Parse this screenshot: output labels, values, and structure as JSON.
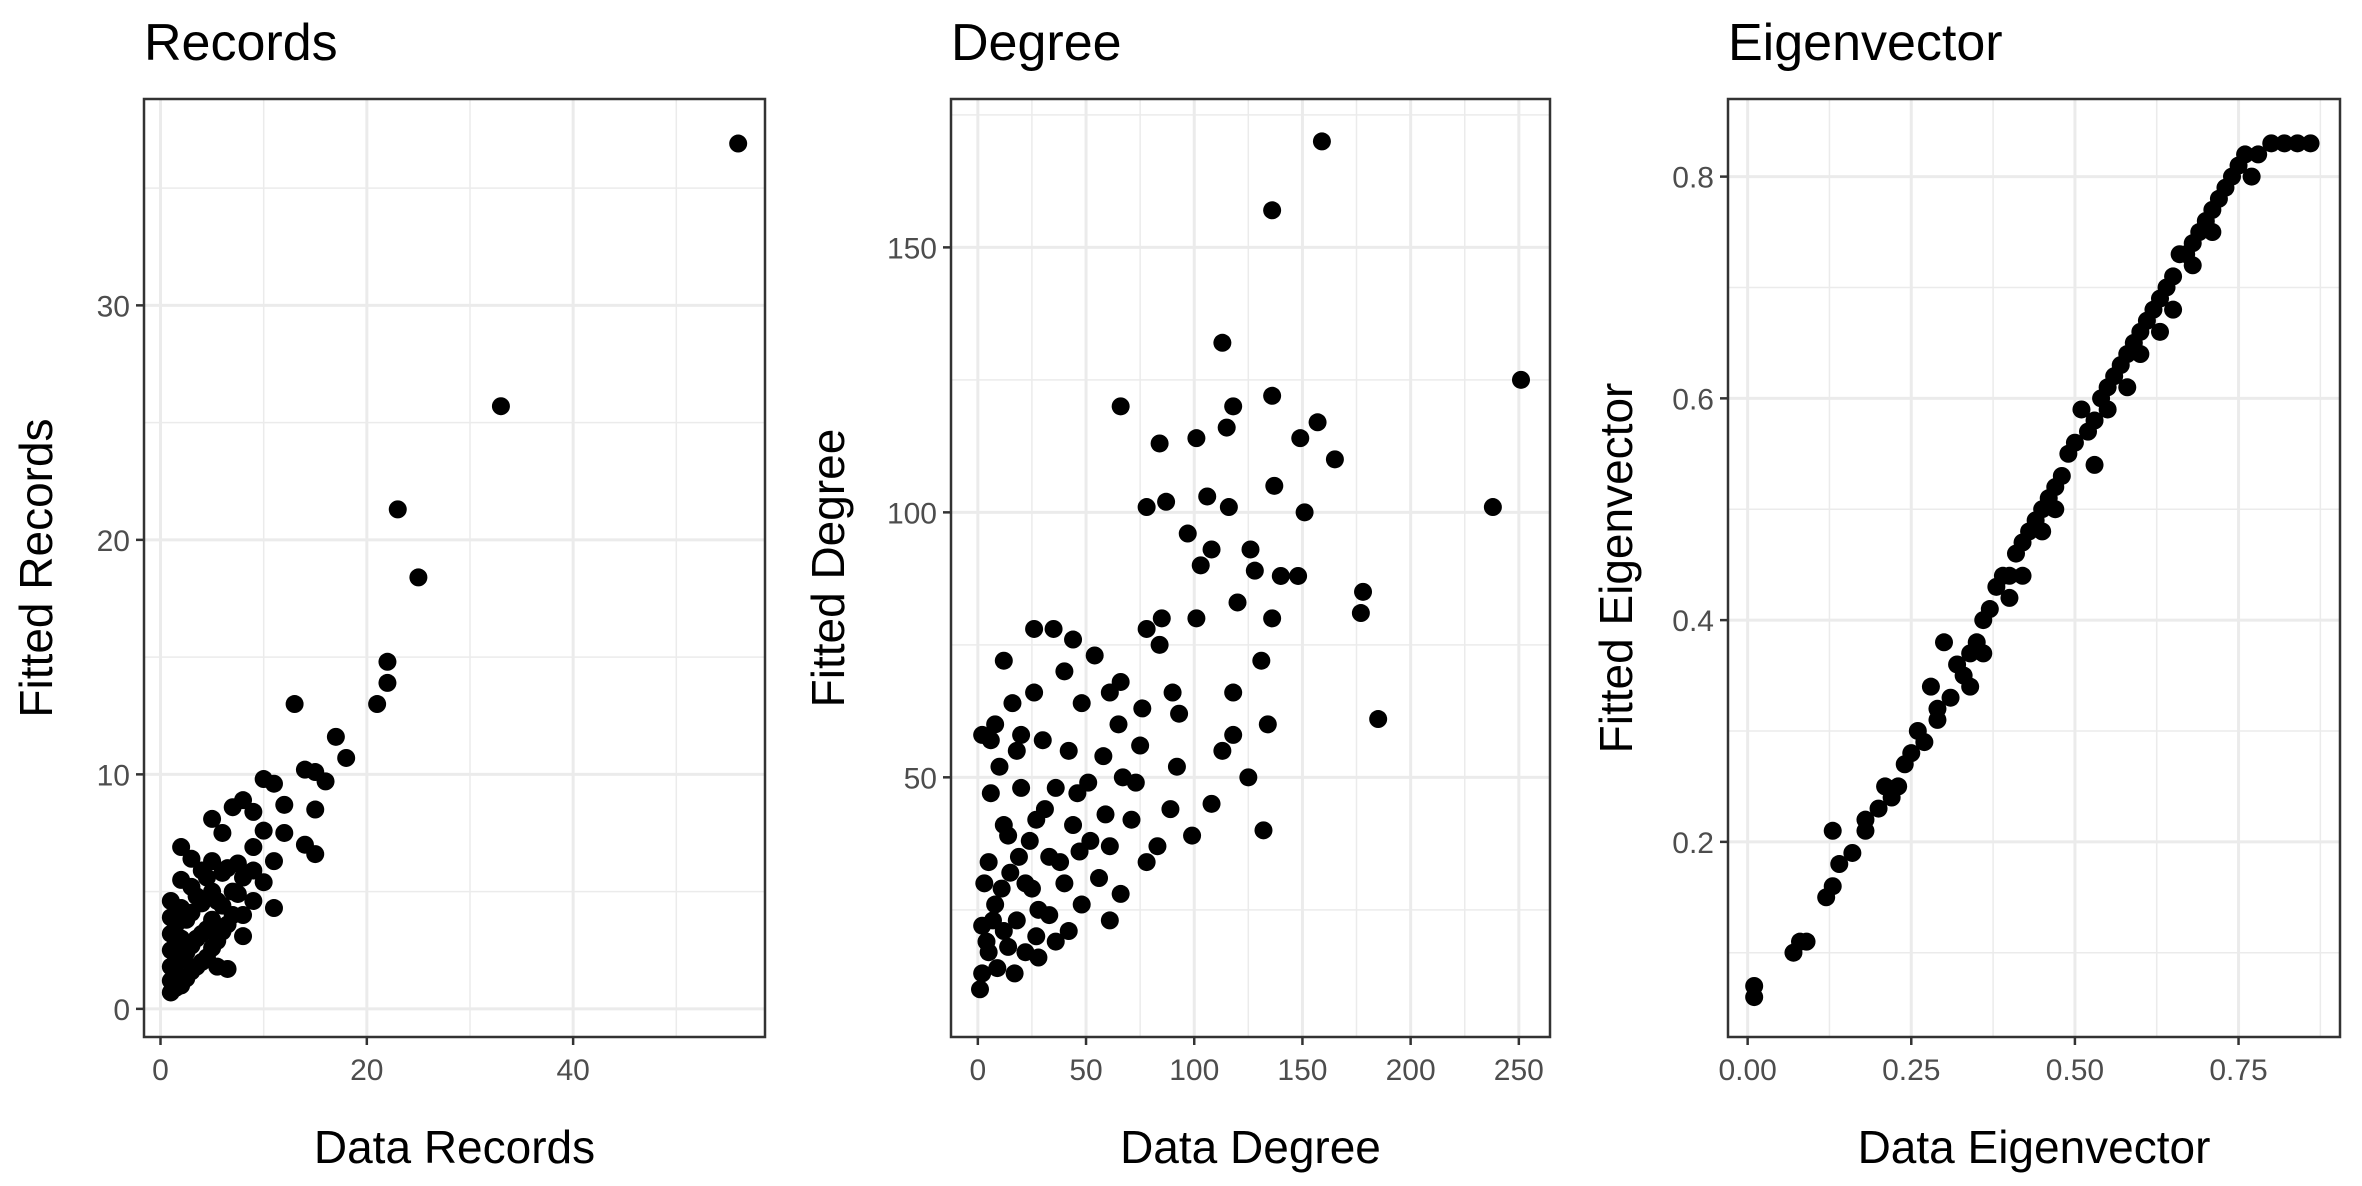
{
  "chart_data": [
    {
      "type": "scatter",
      "title": "Records",
      "xlabel": "Data Records",
      "ylabel": "Fitted Records",
      "xlim": [
        -1.6,
        58.6
      ],
      "ylim": [
        -1.2,
        38.8
      ],
      "xticks": [
        0,
        20,
        40
      ],
      "yticks": [
        0,
        10,
        20,
        30
      ],
      "xminor": [
        10,
        30,
        50
      ],
      "yminor": [
        5,
        15,
        25,
        35
      ],
      "grid": true,
      "point_color": "#000000",
      "points": [
        [
          56,
          36.9
        ],
        [
          33,
          25.7
        ],
        [
          23,
          21.3
        ],
        [
          25,
          18.4
        ],
        [
          22,
          14.8
        ],
        [
          22,
          13.9
        ],
        [
          21,
          13.0
        ],
        [
          13,
          13.0
        ],
        [
          17,
          11.6
        ],
        [
          18,
          10.7
        ],
        [
          14,
          10.2
        ],
        [
          15,
          10.1
        ],
        [
          16,
          9.7
        ],
        [
          10,
          9.8
        ],
        [
          11,
          9.6
        ],
        [
          12,
          8.7
        ],
        [
          14,
          7.0
        ],
        [
          15,
          6.6
        ],
        [
          15,
          8.5
        ],
        [
          8,
          8.9
        ],
        [
          7,
          8.6
        ],
        [
          9,
          8.4
        ],
        [
          5,
          8.1
        ],
        [
          6,
          7.5
        ],
        [
          10,
          7.6
        ],
        [
          12,
          7.5
        ],
        [
          9,
          6.9
        ],
        [
          11,
          6.3
        ],
        [
          10,
          5.4
        ],
        [
          11,
          4.3
        ],
        [
          9,
          4.6
        ],
        [
          8,
          4.0
        ],
        [
          8,
          3.1
        ],
        [
          7,
          5.0
        ],
        [
          6,
          4.4
        ],
        [
          6,
          5.8
        ],
        [
          5,
          6.3
        ],
        [
          5,
          5.0
        ],
        [
          5,
          3.8
        ],
        [
          4,
          4.5
        ],
        [
          4,
          5.9
        ],
        [
          4,
          3.2
        ],
        [
          3,
          2.7
        ],
        [
          3,
          4.1
        ],
        [
          3,
          5.2
        ],
        [
          3,
          6.4
        ],
        [
          2,
          6.9
        ],
        [
          2,
          5.5
        ],
        [
          2,
          4.3
        ],
        [
          2,
          3.0
        ],
        [
          2,
          2.1
        ],
        [
          1,
          1.2
        ],
        [
          1,
          1.8
        ],
        [
          1,
          2.5
        ],
        [
          1,
          3.2
        ],
        [
          1,
          3.9
        ],
        [
          1,
          4.6
        ],
        [
          1.5,
          0.9
        ],
        [
          1.5,
          1.5
        ],
        [
          2.5,
          1.3
        ],
        [
          3.5,
          1.8
        ],
        [
          4.5,
          2.2
        ],
        [
          5.5,
          2.9
        ],
        [
          6.5,
          3.6
        ],
        [
          7.5,
          4.9
        ],
        [
          6.5,
          1.7
        ],
        [
          5.5,
          1.8
        ],
        [
          4.5,
          3.4
        ],
        [
          3.5,
          3.0
        ],
        [
          2.5,
          2.4
        ],
        [
          1.5,
          2.8
        ],
        [
          1.5,
          3.6
        ],
        [
          2.5,
          3.8
        ],
        [
          3.5,
          4.8
        ],
        [
          4.5,
          5.6
        ],
        [
          5.5,
          4.6
        ],
        [
          6.5,
          6.0
        ],
        [
          7.5,
          6.2
        ],
        [
          1,
          0.7
        ],
        [
          2,
          1.0
        ],
        [
          3,
          1.6
        ],
        [
          4,
          2.0
        ],
        [
          5,
          2.6
        ],
        [
          6,
          3.3
        ],
        [
          7,
          4.0
        ],
        [
          8,
          5.6
        ],
        [
          9,
          5.9
        ]
      ]
    },
    {
      "type": "scatter",
      "title": "Degree",
      "xlabel": "Data Degree",
      "ylabel": "Fitted Degree",
      "xlim": [
        -12.4,
        264.4
      ],
      "ylim": [
        1,
        178
      ],
      "xticks": [
        0,
        50,
        100,
        150,
        200,
        250
      ],
      "yticks": [
        50,
        100,
        150
      ],
      "xminor": [
        25,
        75,
        125,
        175,
        225
      ],
      "yminor": [
        25,
        75,
        125,
        175
      ],
      "grid": true,
      "point_color": "#000000",
      "points": [
        [
          159,
          170
        ],
        [
          136,
          157
        ],
        [
          113,
          132
        ],
        [
          251,
          125
        ],
        [
          136,
          122
        ],
        [
          118,
          120
        ],
        [
          66,
          120
        ],
        [
          157,
          117
        ],
        [
          115,
          116
        ],
        [
          149,
          114
        ],
        [
          101,
          114
        ],
        [
          165,
          110
        ],
        [
          84,
          113
        ],
        [
          238,
          101
        ],
        [
          116,
          101
        ],
        [
          137,
          105
        ],
        [
          106,
          103
        ],
        [
          87,
          102
        ],
        [
          78,
          101
        ],
        [
          151,
          100
        ],
        [
          97,
          96
        ],
        [
          108,
          93
        ],
        [
          126,
          93
        ],
        [
          128,
          89
        ],
        [
          103,
          90
        ],
        [
          140,
          88
        ],
        [
          148,
          88
        ],
        [
          178,
          85
        ],
        [
          120,
          83
        ],
        [
          177,
          81
        ],
        [
          101,
          80
        ],
        [
          136,
          80
        ],
        [
          85,
          80
        ],
        [
          78,
          78
        ],
        [
          35,
          78
        ],
        [
          26,
          78
        ],
        [
          84,
          75
        ],
        [
          44,
          76
        ],
        [
          54,
          73
        ],
        [
          12,
          72
        ],
        [
          40,
          70
        ],
        [
          131,
          72
        ],
        [
          66,
          68
        ],
        [
          118,
          66
        ],
        [
          90,
          66
        ],
        [
          61,
          66
        ],
        [
          26,
          66
        ],
        [
          16,
          64
        ],
        [
          185,
          61
        ],
        [
          134,
          60
        ],
        [
          118,
          58
        ],
        [
          93,
          62
        ],
        [
          76,
          63
        ],
        [
          48,
          64
        ],
        [
          2,
          58
        ],
        [
          8,
          60
        ],
        [
          6,
          57
        ],
        [
          18,
          55
        ],
        [
          30,
          57
        ],
        [
          42,
          55
        ],
        [
          58,
          54
        ],
        [
          75,
          56
        ],
        [
          92,
          52
        ],
        [
          113,
          55
        ],
        [
          125,
          50
        ],
        [
          67,
          50
        ],
        [
          51,
          49
        ],
        [
          36,
          48
        ],
        [
          20,
          48
        ],
        [
          6,
          47
        ],
        [
          108,
          45
        ],
        [
          89,
          44
        ],
        [
          71,
          42
        ],
        [
          59,
          43
        ],
        [
          44,
          41
        ],
        [
          27,
          42
        ],
        [
          12,
          41
        ],
        [
          132,
          40
        ],
        [
          99,
          39
        ],
        [
          83,
          37
        ],
        [
          61,
          37
        ],
        [
          47,
          36
        ],
        [
          33,
          35
        ],
        [
          19,
          35
        ],
        [
          5,
          34
        ],
        [
          78,
          34
        ],
        [
          56,
          31
        ],
        [
          40,
          30
        ],
        [
          25,
          29
        ],
        [
          11,
          29
        ],
        [
          3,
          30
        ],
        [
          66,
          28
        ],
        [
          48,
          26
        ],
        [
          33,
          24
        ],
        [
          18,
          23
        ],
        [
          7,
          23
        ],
        [
          2,
          22
        ],
        [
          61,
          23
        ],
        [
          42,
          21
        ],
        [
          27,
          20
        ],
        [
          14,
          18
        ],
        [
          5,
          17
        ],
        [
          36,
          19
        ],
        [
          22,
          17
        ],
        [
          9,
          14
        ],
        [
          2,
          13
        ],
        [
          17,
          13
        ],
        [
          28,
          25
        ],
        [
          15,
          32
        ],
        [
          24,
          38
        ],
        [
          31,
          44
        ],
        [
          10,
          52
        ],
        [
          20,
          58
        ],
        [
          14,
          39
        ],
        [
          1,
          10
        ],
        [
          8,
          26
        ],
        [
          22,
          30
        ],
        [
          38,
          34
        ],
        [
          52,
          38
        ],
        [
          4,
          19
        ],
        [
          12,
          21
        ],
        [
          28,
          16
        ],
        [
          46,
          47
        ],
        [
          65,
          60
        ],
        [
          73,
          49
        ]
      ]
    },
    {
      "type": "scatter",
      "title": "Eigenvector",
      "xlabel": "Data Eigenvector",
      "ylabel": "Fitted Eigenvector",
      "xlim": [
        -0.03,
        0.905
      ],
      "ylim": [
        0.024,
        0.87
      ],
      "xticks": [
        0.0,
        0.25,
        0.5,
        0.75
      ],
      "xtick_labels": [
        "0.00",
        "0.25",
        "0.50",
        "0.75"
      ],
      "yticks": [
        0.2,
        0.4,
        0.6,
        0.8
      ],
      "ytick_labels": [
        "0.2",
        "0.4",
        "0.6",
        "0.8"
      ],
      "xminor": [
        0.125,
        0.375,
        0.625,
        0.875
      ],
      "yminor": [
        0.1,
        0.3,
        0.5,
        0.7
      ],
      "grid": true,
      "point_color": "#000000",
      "points": [
        [
          0.01,
          0.06
        ],
        [
          0.01,
          0.07
        ],
        [
          0.07,
          0.1
        ],
        [
          0.08,
          0.11
        ],
        [
          0.09,
          0.11
        ],
        [
          0.12,
          0.15
        ],
        [
          0.13,
          0.16
        ],
        [
          0.13,
          0.21
        ],
        [
          0.14,
          0.18
        ],
        [
          0.16,
          0.19
        ],
        [
          0.18,
          0.22
        ],
        [
          0.2,
          0.23
        ],
        [
          0.21,
          0.25
        ],
        [
          0.22,
          0.24
        ],
        [
          0.24,
          0.27
        ],
        [
          0.25,
          0.28
        ],
        [
          0.26,
          0.3
        ],
        [
          0.27,
          0.29
        ],
        [
          0.28,
          0.34
        ],
        [
          0.29,
          0.31
        ],
        [
          0.3,
          0.38
        ],
        [
          0.31,
          0.33
        ],
        [
          0.32,
          0.36
        ],
        [
          0.33,
          0.35
        ],
        [
          0.34,
          0.37
        ],
        [
          0.35,
          0.38
        ],
        [
          0.36,
          0.4
        ],
        [
          0.37,
          0.41
        ],
        [
          0.38,
          0.43
        ],
        [
          0.39,
          0.44
        ],
        [
          0.4,
          0.44
        ],
        [
          0.41,
          0.46
        ],
        [
          0.42,
          0.47
        ],
        [
          0.43,
          0.48
        ],
        [
          0.44,
          0.49
        ],
        [
          0.45,
          0.5
        ],
        [
          0.46,
          0.51
        ],
        [
          0.47,
          0.52
        ],
        [
          0.48,
          0.53
        ],
        [
          0.49,
          0.55
        ],
        [
          0.5,
          0.56
        ],
        [
          0.51,
          0.59
        ],
        [
          0.52,
          0.57
        ],
        [
          0.53,
          0.58
        ],
        [
          0.54,
          0.6
        ],
        [
          0.55,
          0.61
        ],
        [
          0.56,
          0.62
        ],
        [
          0.57,
          0.63
        ],
        [
          0.58,
          0.64
        ],
        [
          0.59,
          0.65
        ],
        [
          0.6,
          0.66
        ],
        [
          0.61,
          0.67
        ],
        [
          0.62,
          0.68
        ],
        [
          0.63,
          0.69
        ],
        [
          0.64,
          0.7
        ],
        [
          0.65,
          0.71
        ],
        [
          0.66,
          0.73
        ],
        [
          0.67,
          0.73
        ],
        [
          0.68,
          0.74
        ],
        [
          0.69,
          0.75
        ],
        [
          0.7,
          0.76
        ],
        [
          0.71,
          0.77
        ],
        [
          0.72,
          0.78
        ],
        [
          0.73,
          0.79
        ],
        [
          0.74,
          0.8
        ],
        [
          0.75,
          0.81
        ],
        [
          0.76,
          0.82
        ],
        [
          0.78,
          0.82
        ],
        [
          0.8,
          0.83
        ],
        [
          0.82,
          0.83
        ],
        [
          0.84,
          0.83
        ],
        [
          0.86,
          0.83
        ],
        [
          0.36,
          0.37
        ],
        [
          0.42,
          0.44
        ],
        [
          0.47,
          0.5
        ],
        [
          0.53,
          0.54
        ],
        [
          0.58,
          0.61
        ],
        [
          0.63,
          0.66
        ],
        [
          0.68,
          0.72
        ],
        [
          0.55,
          0.59
        ],
        [
          0.45,
          0.48
        ],
        [
          0.4,
          0.42
        ],
        [
          0.34,
          0.34
        ],
        [
          0.29,
          0.32
        ],
        [
          0.23,
          0.25
        ],
        [
          0.18,
          0.21
        ],
        [
          0.6,
          0.64
        ],
        [
          0.65,
          0.68
        ],
        [
          0.71,
          0.75
        ],
        [
          0.77,
          0.8
        ]
      ]
    }
  ]
}
